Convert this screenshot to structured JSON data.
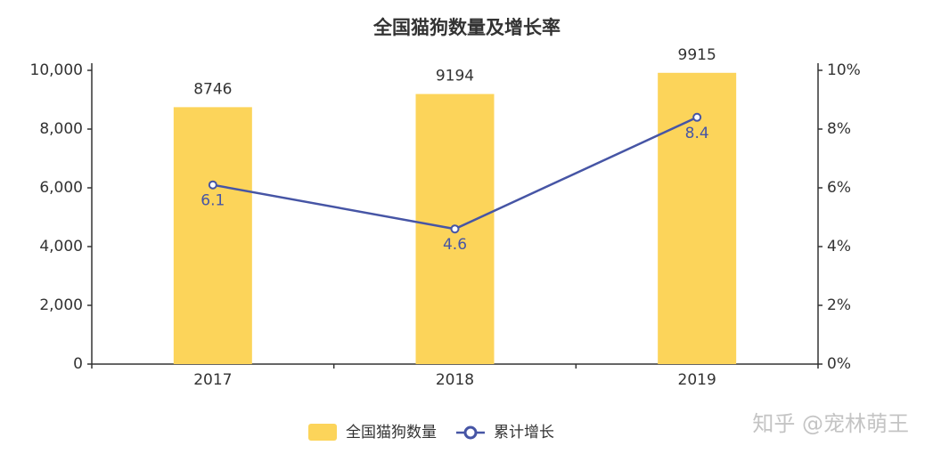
{
  "chart_data": {
    "type": "bar_line",
    "title": "全国猫狗数量及增长率",
    "categories": [
      "2017",
      "2018",
      "2019"
    ],
    "series": [
      {
        "name": "全国猫狗数量",
        "type": "bar",
        "color": "#fcd45a",
        "values": [
          8746,
          9194,
          9915
        ]
      },
      {
        "name": "累计增长",
        "type": "line",
        "axis": "y2",
        "color": "#4655a5",
        "values": [
          6.1,
          4.6,
          8.4
        ]
      }
    ],
    "ylim": [
      0,
      10000
    ],
    "yticks": [
      0,
      {
        "value": 2000,
        "label": "2,000"
      },
      {
        "value": 4000,
        "label": "4,000"
      },
      {
        "value": 6000,
        "label": "6,000"
      },
      {
        "value": 8000,
        "label": "8,000"
      },
      {
        "value": 10000,
        "label": "10,000"
      }
    ],
    "y2lim": [
      0,
      10
    ],
    "y2ticks": [
      {
        "value": 0,
        "label": "0%"
      },
      {
        "value": 2,
        "label": "2%"
      },
      {
        "value": 4,
        "label": "4%"
      },
      {
        "value": 6,
        "label": "6%"
      },
      {
        "value": 8,
        "label": "8%"
      },
      {
        "value": 10,
        "label": "10%"
      }
    ],
    "watermark": "知乎 @宠林萌王"
  }
}
